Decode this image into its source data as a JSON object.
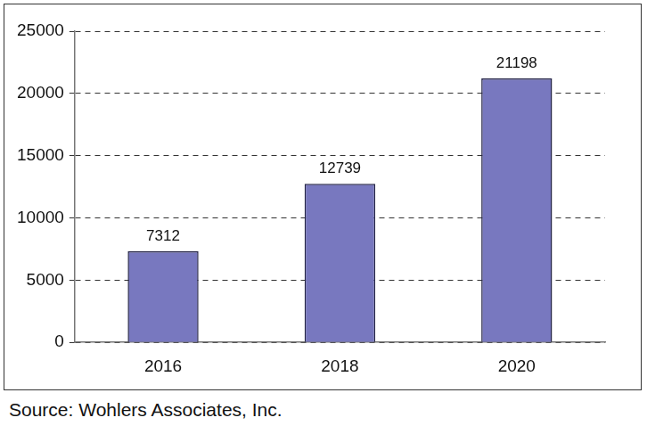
{
  "chart_data": {
    "type": "bar",
    "categories": [
      "2016",
      "2018",
      "2020"
    ],
    "values": [
      7312,
      12739,
      21198
    ],
    "color": "#7878bf",
    "ylim": [
      0,
      25000
    ],
    "yticks": [
      0,
      5000,
      10000,
      15000,
      20000,
      25000
    ],
    "grid": true,
    "data_labels": true,
    "source": "Source: Wohlers Associates, Inc."
  }
}
